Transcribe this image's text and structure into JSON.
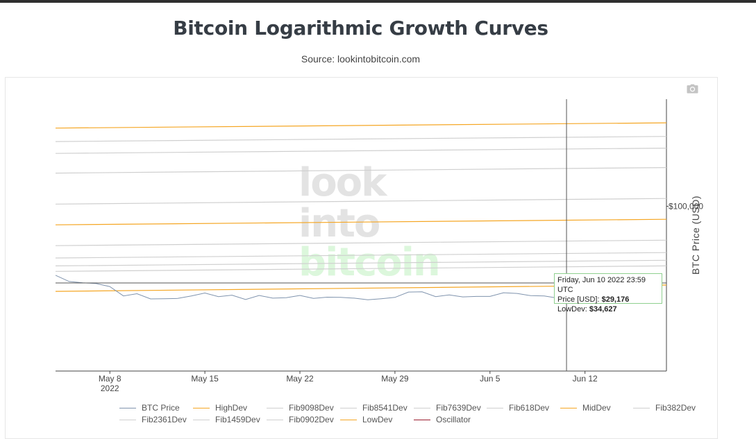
{
  "page": {
    "title": "Bitcoin Logarithmic Growth Curves",
    "subtitle": "Source: lookintobitcoin.com"
  },
  "watermark": {
    "line1": "look",
    "line2": "into",
    "line3": "bitcoin"
  },
  "icons": {
    "camera": "camera-icon"
  },
  "tooltip": {
    "date": "Friday, Jun 10 2022 23:59 UTC",
    "price_label": "Price [USD]:",
    "price_value": "$29,176",
    "lowdev_label": "LowDev:",
    "lowdev_value": "$34,627"
  },
  "colors": {
    "btc_price": "#7f93ad",
    "dev_orange": "#f5a623",
    "fib_gray": "#cfcfcf",
    "oscillator": "#9b1c2e",
    "hover_line": "#555555"
  },
  "chart_data": {
    "type": "line",
    "title": "Bitcoin Logarithmic Growth Curves",
    "ylabel": "BTC Price (USD)",
    "yscale": "log",
    "x_range": [
      "2022-05-04",
      "2022-06-18"
    ],
    "x_ticks": [
      {
        "date": "2022-05-08",
        "label": "May 8",
        "sublabel": "2022"
      },
      {
        "date": "2022-05-15",
        "label": "May 15",
        "sublabel": ""
      },
      {
        "date": "2022-05-22",
        "label": "May 22",
        "sublabel": ""
      },
      {
        "date": "2022-05-29",
        "label": "May 29",
        "sublabel": ""
      },
      {
        "date": "2022-06-05",
        "label": "Jun 5",
        "sublabel": ""
      },
      {
        "date": "2022-06-12",
        "label": "Jun 12",
        "sublabel": ""
      }
    ],
    "y_ticks": [
      {
        "value": 100000,
        "label": "$100,000"
      }
    ],
    "ylim": [
      11000,
      420000
    ],
    "hover_date": "2022-06-10",
    "hover_price": 29176,
    "series": [
      {
        "name": "BTC Price",
        "color": "#7f93ad",
        "dates": [
          "2022-05-04",
          "2022-05-05",
          "2022-05-06",
          "2022-05-07",
          "2022-05-08",
          "2022-05-09",
          "2022-05-10",
          "2022-05-11",
          "2022-05-12",
          "2022-05-13",
          "2022-05-14",
          "2022-05-15",
          "2022-05-16",
          "2022-05-17",
          "2022-05-18",
          "2022-05-19",
          "2022-05-20",
          "2022-05-21",
          "2022-05-22",
          "2022-05-23",
          "2022-05-24",
          "2022-05-25",
          "2022-05-26",
          "2022-05-27",
          "2022-05-28",
          "2022-05-29",
          "2022-05-30",
          "2022-05-31",
          "2022-06-01",
          "2022-06-02",
          "2022-06-03",
          "2022-06-04",
          "2022-06-05",
          "2022-06-06",
          "2022-06-07",
          "2022-06-08",
          "2022-06-09",
          "2022-06-10"
        ],
        "values": [
          39700,
          36500,
          35900,
          35500,
          34100,
          30100,
          31000,
          28900,
          29000,
          29100,
          30100,
          31300,
          29800,
          30400,
          28700,
          30300,
          29200,
          29400,
          30300,
          29100,
          29600,
          29500,
          29200,
          28600,
          29000,
          29500,
          31700,
          31800,
          29800,
          30500,
          29700,
          29900,
          29900,
          31400,
          31100,
          30200,
          30100,
          29200
        ]
      },
      {
        "name": "HighDev",
        "color": "#f5a623",
        "dates": [
          "2022-05-04",
          "2022-06-18"
        ],
        "values": [
          285000,
          306000
        ]
      },
      {
        "name": "Fib9098Dev",
        "color": "#cfcfcf",
        "dates": [
          "2022-05-04",
          "2022-06-18"
        ],
        "values": [
          238000,
          255000
        ]
      },
      {
        "name": "Fib8541Dev",
        "color": "#cfcfcf",
        "dates": [
          "2022-05-04",
          "2022-06-18"
        ],
        "values": [
          203000,
          218000
        ]
      },
      {
        "name": "Fib7639Dev",
        "color": "#cfcfcf",
        "dates": [
          "2022-05-04",
          "2022-06-18"
        ],
        "values": [
          156000,
          168000
        ]
      },
      {
        "name": "Fib618Dev",
        "color": "#cfcfcf",
        "dates": [
          "2022-05-04",
          "2022-06-18"
        ],
        "values": [
          103000,
          111000
        ]
      },
      {
        "name": "MidDev",
        "color": "#f5a623",
        "dates": [
          "2022-05-04",
          "2022-06-18"
        ],
        "values": [
          78000,
          84000
        ]
      },
      {
        "name": "Fib382Dev",
        "color": "#cfcfcf",
        "dates": [
          "2022-05-04",
          "2022-06-18"
        ],
        "values": [
          59000,
          63500
        ]
      },
      {
        "name": "Fib2361Dev",
        "color": "#cfcfcf",
        "dates": [
          "2022-05-04",
          "2022-06-18"
        ],
        "values": [
          50000,
          53800
        ]
      },
      {
        "name": "Fib1459Dev",
        "color": "#cfcfcf",
        "dates": [
          "2022-05-04",
          "2022-06-18"
        ],
        "values": [
          45000,
          48500
        ]
      },
      {
        "name": "Fib0902Dev",
        "color": "#cfcfcf",
        "dates": [
          "2022-05-04",
          "2022-06-18"
        ],
        "values": [
          41800,
          45000
        ]
      },
      {
        "name": "LowDev",
        "color": "#f5a623",
        "dates": [
          "2022-05-04",
          "2022-06-18"
        ],
        "values": [
          32000,
          34800
        ]
      },
      {
        "name": "Oscillator",
        "color": "#9b1c2e",
        "dates": [],
        "values": []
      }
    ],
    "legend": [
      "BTC Price",
      "HighDev",
      "Fib9098Dev",
      "Fib8541Dev",
      "Fib7639Dev",
      "Fib618Dev",
      "MidDev",
      "Fib382Dev",
      "Fib2361Dev",
      "Fib1459Dev",
      "Fib0902Dev",
      "LowDev",
      "Oscillator"
    ]
  }
}
